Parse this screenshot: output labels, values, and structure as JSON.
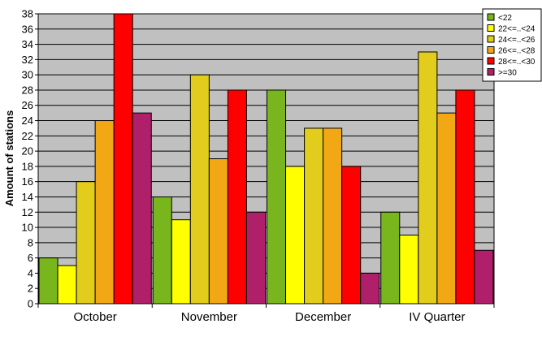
{
  "chart_data": {
    "type": "bar",
    "title": "",
    "xlabel": "",
    "ylabel": "Amount of stations",
    "ylim": [
      0,
      38
    ],
    "ytick_step": 2,
    "grid": true,
    "legend_position": "top-right",
    "plot_background": "#c0c0c0",
    "categories": [
      "October",
      "November",
      "December",
      "IV Quarter"
    ],
    "series": [
      {
        "name": "<22",
        "color": "#79b51c",
        "values": [
          6,
          14,
          28,
          12
        ]
      },
      {
        "name": "22<=..<24",
        "color": "#ffff00",
        "values": [
          5,
          11,
          18,
          9
        ]
      },
      {
        "name": "24<=..<26",
        "color": "#e2cd1c",
        "values": [
          16,
          30,
          23,
          33
        ]
      },
      {
        "name": "26<=..<28",
        "color": "#f2a814",
        "values": [
          24,
          19,
          23,
          25
        ]
      },
      {
        "name": "28<=..<30",
        "color": "#ff0000",
        "values": [
          38,
          28,
          18,
          28
        ]
      },
      {
        "name": ">=30",
        "color": "#b0206a",
        "values": [
          25,
          12,
          4,
          7
        ]
      }
    ]
  }
}
